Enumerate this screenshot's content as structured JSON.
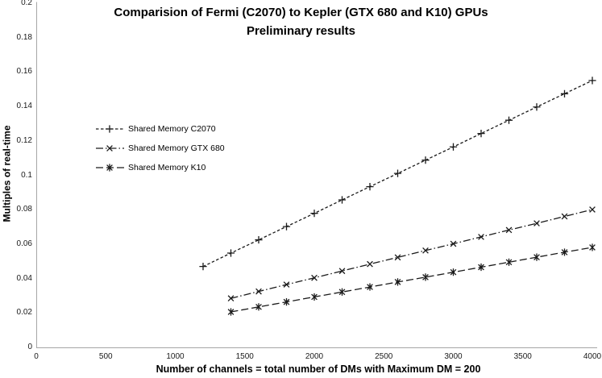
{
  "title": {
    "line1": "Comparision of Fermi (C2070) to Kepler (GTX 680 and K10) GPUs",
    "line2": "Preliminary results"
  },
  "colors": {
    "axis_line": "#a6a6a6",
    "series_stroke": "#1a1a1a",
    "text": "#000000",
    "background": "#ffffff"
  },
  "chart_data": {
    "type": "line",
    "title": "Comparision of Fermi (C2070) to Kepler (GTX 680 and K10) GPUs",
    "subtitle": "Preliminary results",
    "xlabel": "Number of channels = total number of DMs with Maximum DM = 200",
    "ylabel": "Multiples of real-time",
    "xlim": [
      0,
      4000
    ],
    "ylim": [
      0,
      0.2
    ],
    "grid": false,
    "legend_position": "inside-upper-left",
    "x_ticks": [
      {
        "value": 0,
        "label": "0"
      },
      {
        "value": 500,
        "label": "500"
      },
      {
        "value": 1000,
        "label": "1000"
      },
      {
        "value": 1500,
        "label": "1500"
      },
      {
        "value": 2000,
        "label": "2000"
      },
      {
        "value": 2500,
        "label": "2500"
      },
      {
        "value": 3000,
        "label": "3000"
      },
      {
        "value": 3500,
        "label": "3500"
      },
      {
        "value": 4000,
        "label": "4000"
      }
    ],
    "y_ticks": [
      {
        "value": 0,
        "label": "0"
      },
      {
        "value": 0.02,
        "label": "0.02"
      },
      {
        "value": 0.04,
        "label": "0.04"
      },
      {
        "value": 0.06,
        "label": "0.06"
      },
      {
        "value": 0.08,
        "label": "0.08"
      },
      {
        "value": 0.1,
        "label": "0.1"
      },
      {
        "value": 0.12,
        "label": "0.12"
      },
      {
        "value": 0.14,
        "label": "0.14"
      },
      {
        "value": 0.16,
        "label": "0.16"
      },
      {
        "value": 0.18,
        "label": "0.18"
      },
      {
        "value": 0.2,
        "label": "0.2"
      }
    ],
    "series": [
      {
        "name": "Shared Memory C2070",
        "marker": "plus",
        "line_style": "dashed",
        "points": [
          [
            1200,
            0.047
          ],
          [
            1400,
            0.0548
          ],
          [
            1600,
            0.0625
          ],
          [
            1800,
            0.0702
          ],
          [
            2000,
            0.0779
          ],
          [
            2200,
            0.0857
          ],
          [
            2400,
            0.0934
          ],
          [
            2600,
            0.1011
          ],
          [
            2800,
            0.1088
          ],
          [
            3000,
            0.1165
          ],
          [
            3200,
            0.1243
          ],
          [
            3400,
            0.132
          ],
          [
            3600,
            0.1397
          ],
          [
            3800,
            0.1474
          ],
          [
            4000,
            0.1551
          ]
        ]
      },
      {
        "name": "Shared Memory GTX 680",
        "marker": "x",
        "line_style": "dash-dot",
        "points": [
          [
            1400,
            0.0285
          ],
          [
            1600,
            0.0325
          ],
          [
            1800,
            0.0365
          ],
          [
            2000,
            0.0404
          ],
          [
            2200,
            0.0444
          ],
          [
            2400,
            0.0484
          ],
          [
            2600,
            0.0523
          ],
          [
            2800,
            0.0563
          ],
          [
            3000,
            0.0602
          ],
          [
            3200,
            0.0642
          ],
          [
            3400,
            0.0682
          ],
          [
            3600,
            0.0721
          ],
          [
            3800,
            0.0761
          ],
          [
            4000,
            0.0801
          ]
        ]
      },
      {
        "name": "Shared Memory K10",
        "marker": "star",
        "line_style": "long-dash",
        "points": [
          [
            1400,
            0.0206
          ],
          [
            1600,
            0.0235
          ],
          [
            1800,
            0.0264
          ],
          [
            2000,
            0.0293
          ],
          [
            2200,
            0.0322
          ],
          [
            2400,
            0.0351
          ],
          [
            2600,
            0.038
          ],
          [
            2800,
            0.0408
          ],
          [
            3000,
            0.0437
          ],
          [
            3200,
            0.0466
          ],
          [
            3400,
            0.0495
          ],
          [
            3600,
            0.0524
          ],
          [
            3800,
            0.0553
          ],
          [
            4000,
            0.0581
          ]
        ]
      }
    ]
  }
}
